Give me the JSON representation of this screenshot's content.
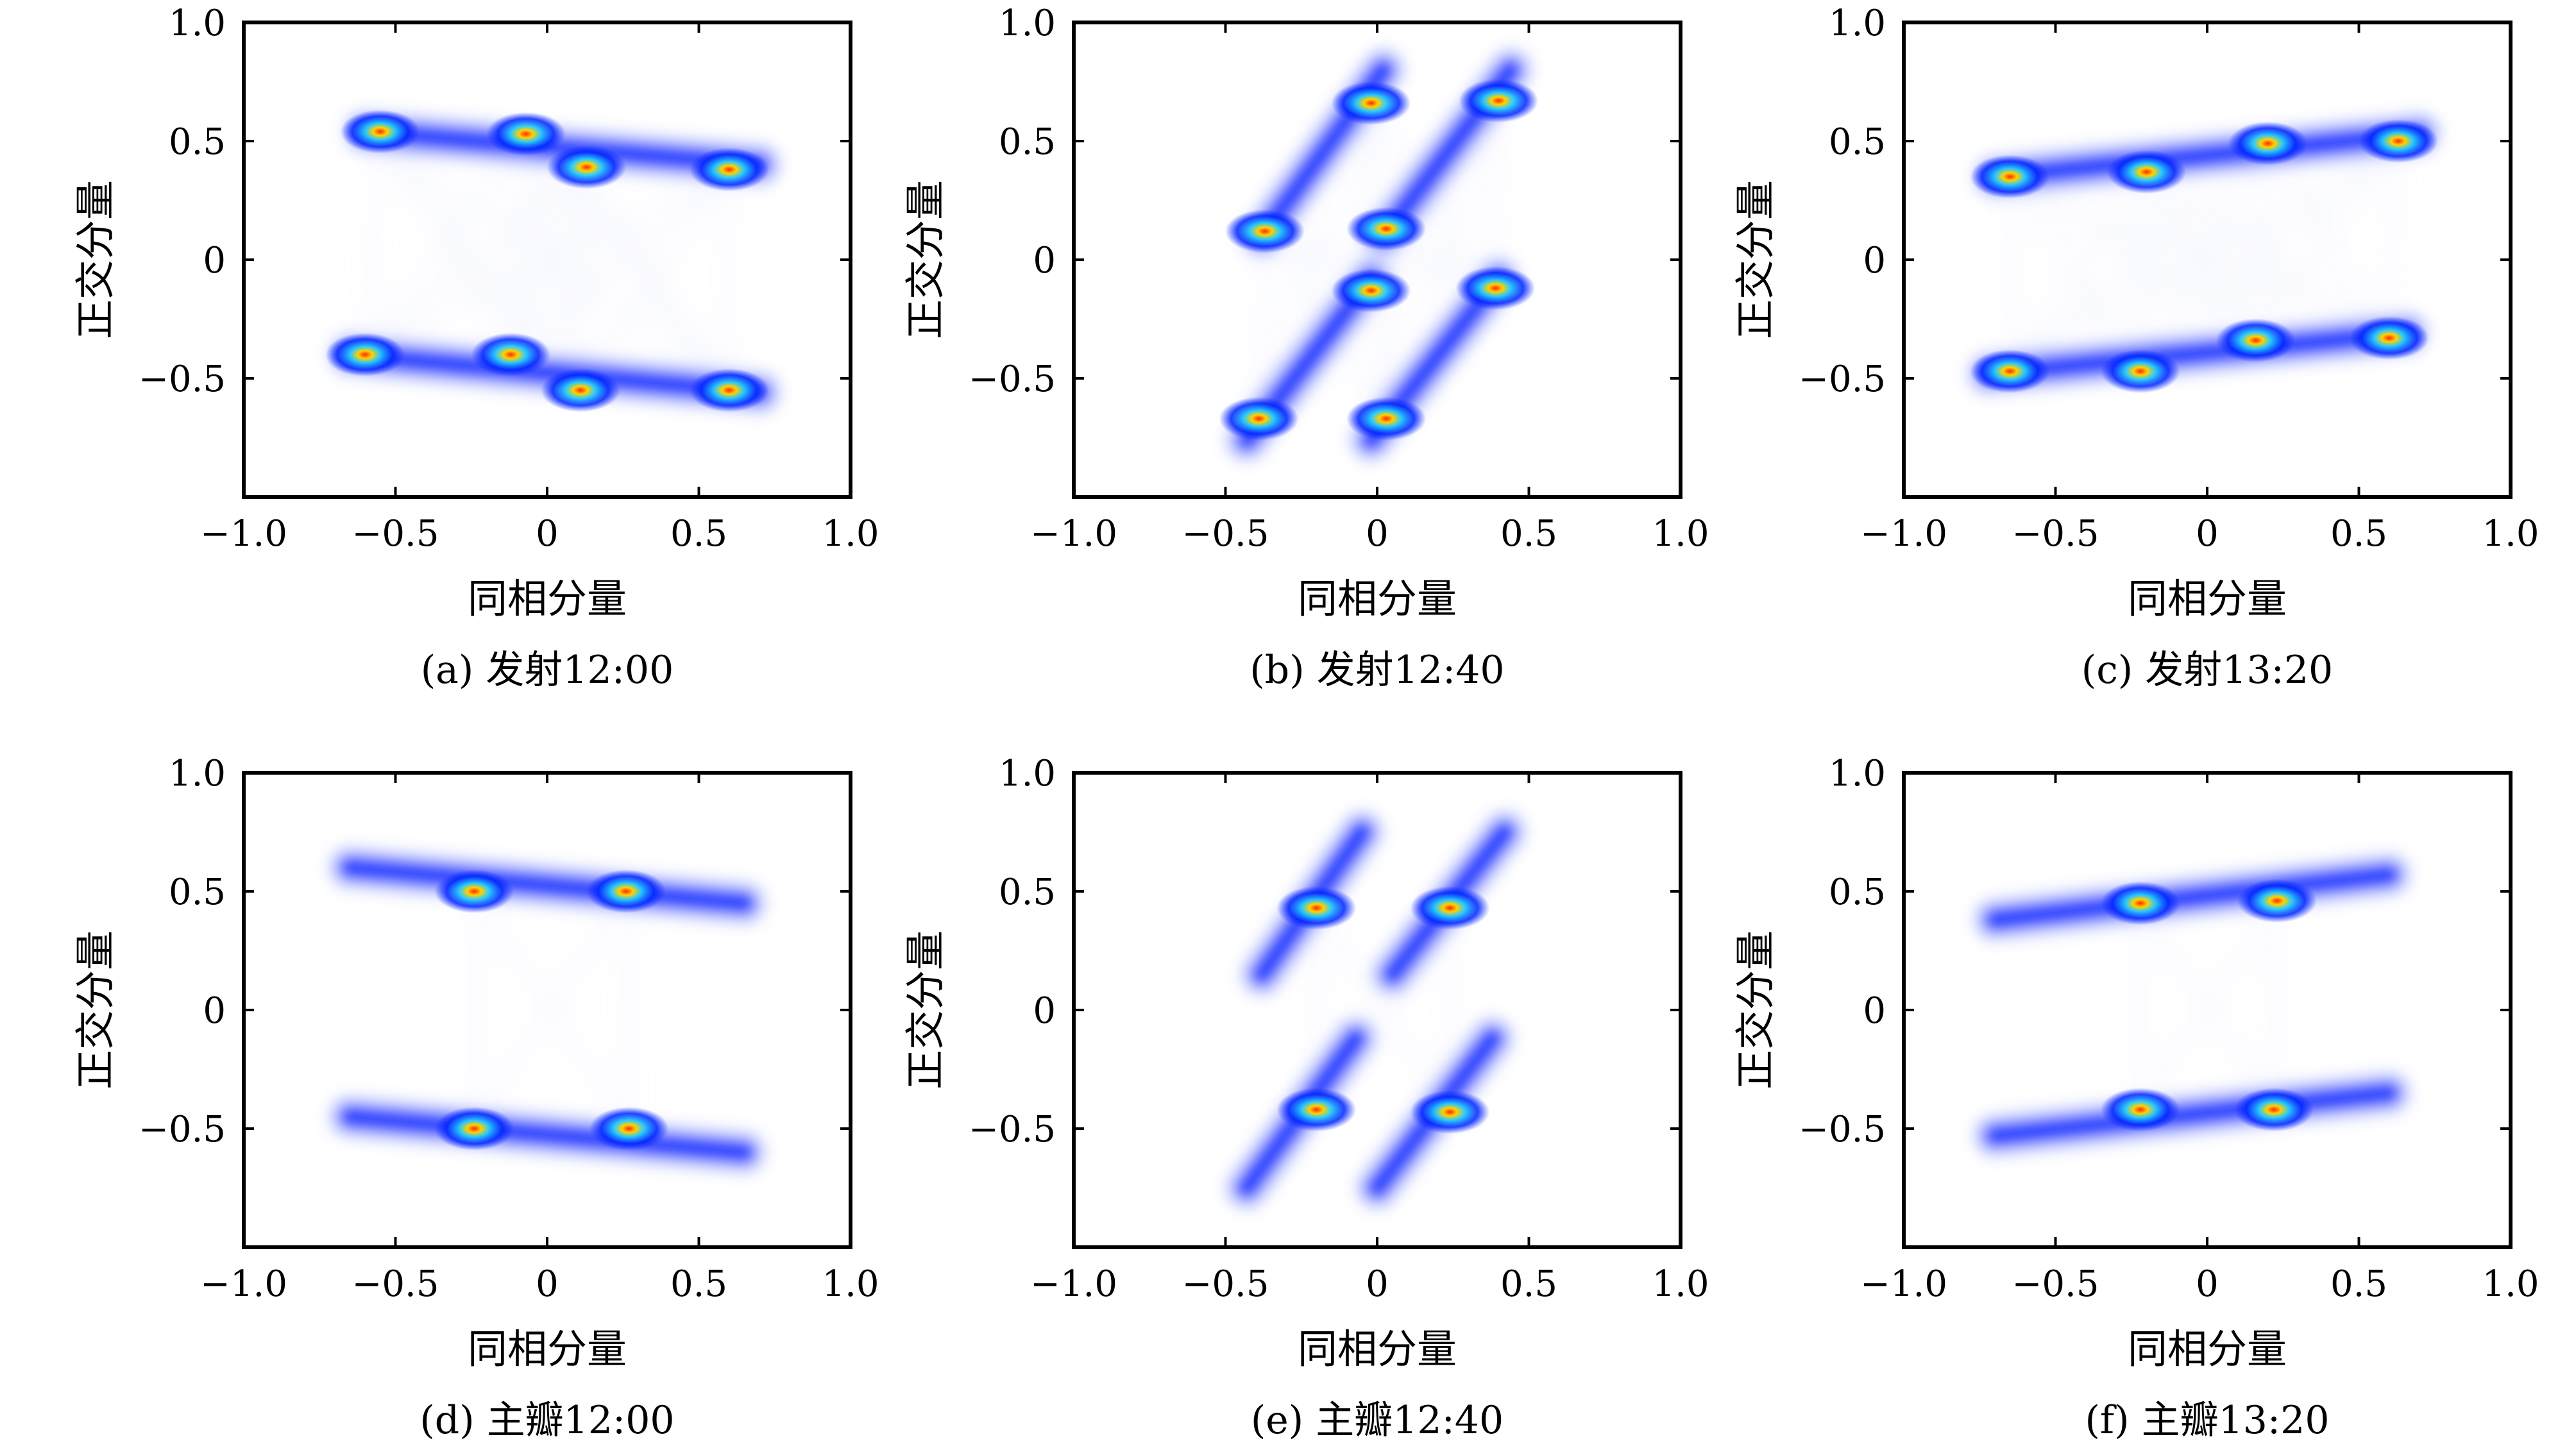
{
  "colors": {
    "axis": "#000000",
    "low_density": "#aab4ff",
    "mid_density": "#0022ff",
    "cyan": "#22ccff",
    "high_density": "#ff2a00",
    "peak": "#ffd200"
  },
  "chart_data": [
    {
      "type": "scatter",
      "caption": "(a) 发射12:00",
      "xlabel": "同相分量",
      "ylabel": "正交分量",
      "xlim": [
        -1.0,
        1.0
      ],
      "ylim": [
        -1.0,
        1.0
      ],
      "xticks": [
        "−1.0",
        "−0.5",
        "0",
        "0.5",
        "1.0"
      ],
      "yticks": [
        "1.0",
        "0.5",
        "0",
        "−0.5"
      ],
      "grid": false,
      "density_peaks": [
        {
          "x": -0.55,
          "y": 0.54
        },
        {
          "x": -0.07,
          "y": 0.53
        },
        {
          "x": 0.13,
          "y": 0.39
        },
        {
          "x": 0.6,
          "y": 0.38
        },
        {
          "x": -0.6,
          "y": -0.4
        },
        {
          "x": -0.12,
          "y": -0.4
        },
        {
          "x": 0.11,
          "y": -0.55
        },
        {
          "x": 0.6,
          "y": -0.55
        }
      ],
      "streaks": [
        {
          "x1": -0.6,
          "y1": 0.54,
          "x2": 0.7,
          "y2": 0.4
        },
        {
          "x1": -0.65,
          "y1": -0.4,
          "x2": 0.7,
          "y2": -0.56
        }
      ]
    },
    {
      "type": "scatter",
      "caption": "(b) 发射12:40",
      "xlabel": "同相分量",
      "ylabel": "正交分量",
      "xlim": [
        -1.0,
        1.0
      ],
      "ylim": [
        -1.0,
        1.0
      ],
      "xticks": [
        "−1.0",
        "−0.5",
        "0",
        "0.5",
        "1.0"
      ],
      "yticks": [
        "1.0",
        "0.5",
        "0",
        "−0.5"
      ],
      "grid": false,
      "density_peaks": [
        {
          "x": -0.02,
          "y": 0.66
        },
        {
          "x": 0.4,
          "y": 0.67
        },
        {
          "x": -0.37,
          "y": 0.12
        },
        {
          "x": 0.03,
          "y": 0.13
        },
        {
          "x": -0.02,
          "y": -0.13
        },
        {
          "x": 0.39,
          "y": -0.12
        },
        {
          "x": -0.39,
          "y": -0.67
        },
        {
          "x": 0.03,
          "y": -0.67
        }
      ],
      "streaks": [
        {
          "x1": -0.38,
          "y1": 0.1,
          "x2": 0.02,
          "y2": 0.8
        },
        {
          "x1": 0.02,
          "y1": 0.1,
          "x2": 0.44,
          "y2": 0.8
        },
        {
          "x1": -0.43,
          "y1": -0.76,
          "x2": -0.02,
          "y2": -0.08
        },
        {
          "x1": -0.02,
          "y1": -0.76,
          "x2": 0.4,
          "y2": -0.08
        }
      ]
    },
    {
      "type": "scatter",
      "caption": "(c) 发射13:20",
      "xlabel": "同相分量",
      "ylabel": "正交分量",
      "xlim": [
        -1.0,
        1.0
      ],
      "ylim": [
        -1.0,
        1.0
      ],
      "xticks": [
        "−1.0",
        "−0.5",
        "0",
        "0.5",
        "1.0"
      ],
      "yticks": [
        "1.0",
        "0.5",
        "0",
        "−0.5"
      ],
      "grid": false,
      "density_peaks": [
        {
          "x": -0.65,
          "y": 0.35
        },
        {
          "x": -0.2,
          "y": 0.37
        },
        {
          "x": 0.2,
          "y": 0.49
        },
        {
          "x": 0.63,
          "y": 0.5
        },
        {
          "x": -0.65,
          "y": -0.47
        },
        {
          "x": -0.22,
          "y": -0.47
        },
        {
          "x": 0.16,
          "y": -0.34
        },
        {
          "x": 0.6,
          "y": -0.33
        }
      ],
      "streaks": [
        {
          "x1": -0.7,
          "y1": 0.35,
          "x2": 0.7,
          "y2": 0.53
        },
        {
          "x1": -0.72,
          "y1": -0.48,
          "x2": 0.66,
          "y2": -0.31
        }
      ]
    },
    {
      "type": "scatter",
      "caption": "(d) 主瓣12:00",
      "xlabel": "同相分量",
      "ylabel": "正交分量",
      "xlim": [
        -1.0,
        1.0
      ],
      "ylim": [
        -1.0,
        1.0
      ],
      "xticks": [
        "−1.0",
        "−0.5",
        "0",
        "0.5",
        "1.0"
      ],
      "yticks": [
        "1.0",
        "0.5",
        "0",
        "−0.5"
      ],
      "grid": false,
      "density_peaks": [
        {
          "x": -0.24,
          "y": 0.5
        },
        {
          "x": 0.26,
          "y": 0.5
        },
        {
          "x": -0.24,
          "y": -0.5
        },
        {
          "x": 0.27,
          "y": -0.5
        }
      ],
      "streaks": [
        {
          "x1": -0.65,
          "y1": 0.6,
          "x2": 0.65,
          "y2": 0.45
        },
        {
          "x1": -0.65,
          "y1": -0.45,
          "x2": 0.65,
          "y2": -0.6
        }
      ]
    },
    {
      "type": "scatter",
      "caption": "(e) 主瓣12:40",
      "xlabel": "同相分量",
      "ylabel": "正交分量",
      "xlim": [
        -1.0,
        1.0
      ],
      "ylim": [
        -1.0,
        1.0
      ],
      "xticks": [
        "−1.0",
        "−0.5",
        "0",
        "0.5",
        "1.0"
      ],
      "yticks": [
        "1.0",
        "0.5",
        "0",
        "−0.5"
      ],
      "grid": false,
      "density_peaks": [
        {
          "x": -0.2,
          "y": 0.43
        },
        {
          "x": 0.24,
          "y": 0.43
        },
        {
          "x": -0.2,
          "y": -0.42
        },
        {
          "x": 0.24,
          "y": -0.43
        }
      ],
      "streaks": [
        {
          "x1": -0.38,
          "y1": 0.15,
          "x2": -0.05,
          "y2": 0.75
        },
        {
          "x1": 0.05,
          "y1": 0.15,
          "x2": 0.42,
          "y2": 0.75
        },
        {
          "x1": -0.43,
          "y1": -0.75,
          "x2": -0.07,
          "y2": -0.12
        },
        {
          "x1": 0.0,
          "y1": -0.75,
          "x2": 0.38,
          "y2": -0.12
        }
      ]
    },
    {
      "type": "scatter",
      "caption": "(f) 主瓣13:20",
      "xlabel": "同相分量",
      "ylabel": "正交分量",
      "xlim": [
        -1.0,
        1.0
      ],
      "ylim": [
        -1.0,
        1.0
      ],
      "xticks": [
        "−1.0",
        "−0.5",
        "0",
        "0.5",
        "1.0"
      ],
      "yticks": [
        "1.0",
        "0.5",
        "0",
        "−0.5"
      ],
      "grid": false,
      "density_peaks": [
        {
          "x": -0.22,
          "y": 0.45
        },
        {
          "x": 0.23,
          "y": 0.46
        },
        {
          "x": -0.22,
          "y": -0.42
        },
        {
          "x": 0.22,
          "y": -0.42
        }
      ],
      "streaks": [
        {
          "x1": -0.7,
          "y1": 0.38,
          "x2": 0.6,
          "y2": 0.57
        },
        {
          "x1": -0.7,
          "y1": -0.53,
          "x2": 0.6,
          "y2": -0.35
        }
      ]
    }
  ]
}
